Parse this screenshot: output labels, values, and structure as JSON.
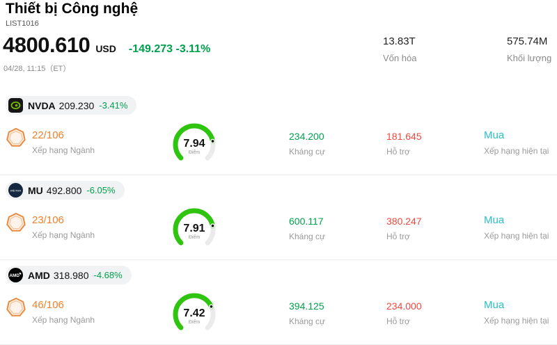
{
  "header": {
    "title": "Thiết bị Công nghệ",
    "list_id": "LIST1016",
    "price": "4800.610",
    "currency": "USD",
    "change": "-149.273 -3.11%",
    "datetime": "04/28, 11:15（ET）",
    "market_cap": {
      "value": "13.83T",
      "label": "Vốn hóa"
    },
    "volume": {
      "value": "575.74M",
      "label": "Khối lượng"
    }
  },
  "labels": {
    "industry_rank": "Xếp hạng Ngành",
    "resistance": "Kháng cự",
    "support": "Hỗ trợ",
    "current_rating": "Xếp hạng hiện tại",
    "score": "Điểm"
  },
  "rows": [
    {
      "symbol": "NVDA",
      "price": "209.230",
      "change": "-3.41%",
      "rank": "22/106",
      "score": "7.94",
      "score_value": 7.94,
      "score_max": 10,
      "resistance": "234.200",
      "support": "181.645",
      "rating": "Mua"
    },
    {
      "symbol": "MU",
      "price": "492.800",
      "change": "-6.05%",
      "rank": "23/106",
      "score": "7.91",
      "score_value": 7.91,
      "score_max": 10,
      "resistance": "600.117",
      "support": "380.247",
      "rating": "Mua"
    },
    {
      "symbol": "AMD",
      "price": "318.980",
      "change": "-4.68%",
      "rank": "46/106",
      "score": "7.42",
      "score_value": 7.42,
      "score_max": 10,
      "resistance": "394.125",
      "support": "234.000",
      "rating": "Mua"
    }
  ],
  "colors": {
    "green": "#00a14e",
    "red": "#f0483e",
    "teal": "#29bfc9",
    "orange": "#f0812c",
    "gauge": "#2fc40f"
  }
}
